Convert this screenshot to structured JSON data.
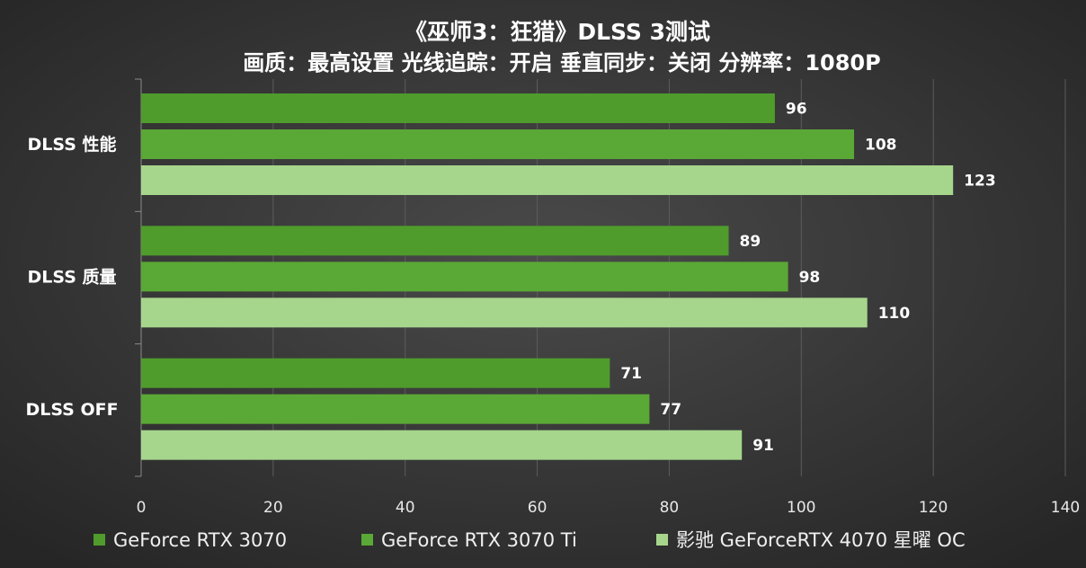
{
  "chart_data": {
    "type": "hbar",
    "title": "《巫师3：狂猎》DLSS 3测试",
    "subtitle": "画质：最高设置 光线追踪：开启  垂直同步：关闭 分辨率：1080P",
    "categories": [
      "DLSS 性能",
      "DLSS 质量",
      "DLSS OFF"
    ],
    "series": [
      {
        "name": "GeForce RTX 3070",
        "color": "#4f9c2c",
        "values": [
          96,
          89,
          71
        ]
      },
      {
        "name": "GeForce RTX 3070 Ti",
        "color": "#5aa836",
        "values": [
          108,
          98,
          77
        ]
      },
      {
        "name": "影驰 GeForceRTX 4070 星曜 OC",
        "color": "#a6d68c",
        "values": [
          123,
          110,
          91
        ]
      }
    ],
    "xlim": [
      0,
      140
    ],
    "xticks": [
      0,
      20,
      40,
      60,
      80,
      100,
      120,
      140
    ],
    "grid": true
  }
}
